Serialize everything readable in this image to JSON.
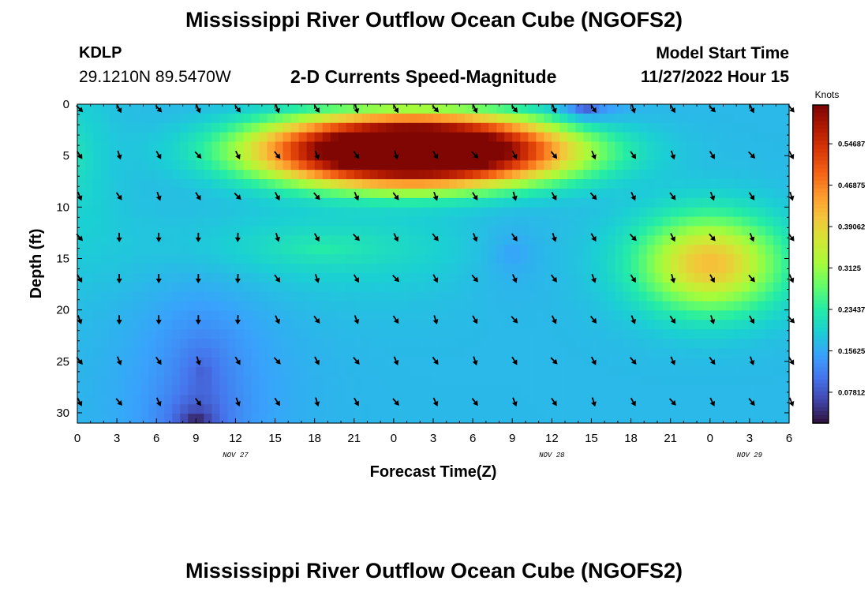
{
  "header": {
    "title": "Mississippi River Outflow Ocean Cube (NGOFS2)",
    "station_id": "KDLP",
    "station_coords": "29.1210N  89.5470W",
    "subtitle": "2-D Currents Speed-Magnitude",
    "start_label": "Model Start Time",
    "start_value": "11/27/2022 Hour 15"
  },
  "footer": {
    "title": "Mississippi River Outflow Ocean Cube (NGOFS2)"
  },
  "chart_data": {
    "type": "heatmap",
    "title": "2-D Currents Speed-Magnitude",
    "xlabel": "Forecast Time(Z)",
    "ylabel": "Depth (ft)",
    "x_ticks": [
      "0",
      "3",
      "6",
      "9",
      "12",
      "15",
      "18",
      "21",
      "0",
      "3",
      "6",
      "9",
      "12",
      "15",
      "18",
      "21",
      "0",
      "3",
      "6"
    ],
    "x_range_hours": [
      0,
      54
    ],
    "date_labels": [
      {
        "text": "NOV 27",
        "hour": 12
      },
      {
        "text": "NOV 28",
        "hour": 36
      },
      {
        "text": "NOV 29",
        "hour": 51
      }
    ],
    "y_ticks": [
      0,
      5,
      10,
      15,
      20,
      25,
      30
    ],
    "y_range": [
      0,
      31
    ],
    "y_inverted": true,
    "colorbar": {
      "unit": "Knots",
      "tick_values": [
        "0.07812",
        "0.15625",
        "0.23437",
        "0.3125",
        "0.39062",
        "0.46875",
        "0.54687"
      ],
      "range": [
        0.02,
        0.62
      ],
      "colormap": [
        "#30123b",
        "#4145ab",
        "#4675ed",
        "#39a2fc",
        "#1bcfd4",
        "#24eca6",
        "#61fc6c",
        "#a4fc3b",
        "#d1e834",
        "#f3c63a",
        "#fe9b2d",
        "#f36315",
        "#d93806",
        "#b11901",
        "#7a0403"
      ]
    },
    "speed_fields": {
      "base": 0.17,
      "blobs": [
        {
          "center_hour": 25.5,
          "center_depth": 4.5,
          "sigma_hour": 12.0,
          "sigma_depth": 3.6,
          "amplitude": 0.58,
          "flat_power": 2.6
        },
        {
          "center_hour": 48.0,
          "center_depth": 15.5,
          "sigma_hour": 5.3,
          "sigma_depth": 4.6,
          "amplitude": 0.24,
          "flat_power": 2.0
        },
        {
          "center_hour": 18.5,
          "center_depth": 14.0,
          "sigma_hour": 10.0,
          "sigma_depth": 3.0,
          "amplitude": 0.07,
          "flat_power": 1.0
        },
        {
          "center_hour": 9.5,
          "center_depth": 26.0,
          "sigma_hour": 3.5,
          "sigma_depth": 7.0,
          "amplitude": -0.08,
          "flat_power": 1.0
        },
        {
          "center_hour": 9.0,
          "center_depth": 31.0,
          "sigma_hour": 1.6,
          "sigma_depth": 1.6,
          "amplitude": -0.12,
          "flat_power": 1.0
        },
        {
          "center_hour": 38.5,
          "center_depth": 0.3,
          "sigma_hour": 1.6,
          "sigma_depth": 1.3,
          "amplitude": -0.12,
          "flat_power": 1.0
        },
        {
          "center_hour": 33.0,
          "center_depth": 14.5,
          "sigma_hour": 2.5,
          "sigma_depth": 3.0,
          "amplitude": -0.04,
          "flat_power": 1.0
        },
        {
          "center_hour": 0.0,
          "center_depth": 5.0,
          "sigma_hour": 2.0,
          "sigma_depth": 6.0,
          "amplitude": 0.05,
          "flat_power": 1.0
        }
      ]
    },
    "vector_rows_depth": [
      0,
      4.5,
      8.5,
      12.5,
      16.5,
      20.5,
      24.5,
      28.5
    ],
    "vector_cols_hour": [
      0,
      3,
      6,
      9,
      12,
      15,
      18,
      21,
      24,
      27,
      30,
      33,
      36,
      39,
      42,
      45,
      48,
      51,
      54
    ],
    "vector_direction": "predominantly southward to southeastward"
  }
}
